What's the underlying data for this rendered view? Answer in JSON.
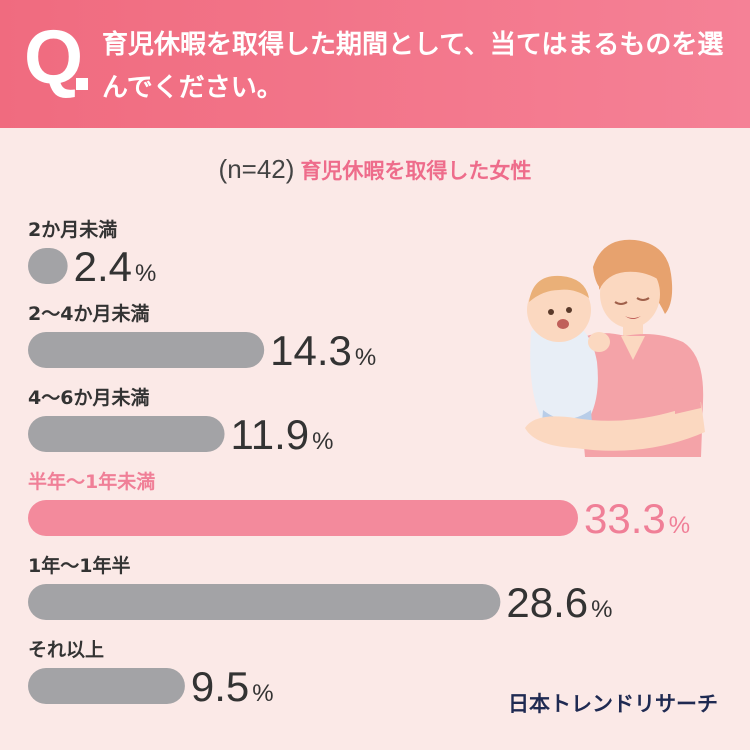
{
  "header": {
    "q_mark": "Q",
    "question": "育児休暇を取得した期間として、当てはまるものを選んでください。"
  },
  "subtitle": {
    "sample": "(n=42)",
    "group": "育児休暇を取得した女性"
  },
  "brand": "日本トレンドリサーチ",
  "colors": {
    "bar_default": "#a3a3a6",
    "bar_highlight": "#f38a9c",
    "label_default": "#333333",
    "label_highlight": "#f07f97",
    "header_bg": "#f06b7f",
    "page_bg": "#fbe9e7"
  },
  "chart_data": {
    "type": "bar",
    "orientation": "horizontal",
    "unit": "%",
    "categories": [
      "2か月未満",
      "2〜4か月未満",
      "4〜6か月未満",
      "半年〜1年未満",
      "1年〜1年半",
      "それ以上"
    ],
    "values": [
      2.4,
      14.3,
      11.9,
      33.3,
      28.6,
      9.5
    ],
    "value_labels": [
      "2.4",
      "14.3",
      "11.9",
      "33.3",
      "28.6",
      "9.5"
    ],
    "highlight_index": 3,
    "xlim": [
      0,
      33.3
    ]
  }
}
